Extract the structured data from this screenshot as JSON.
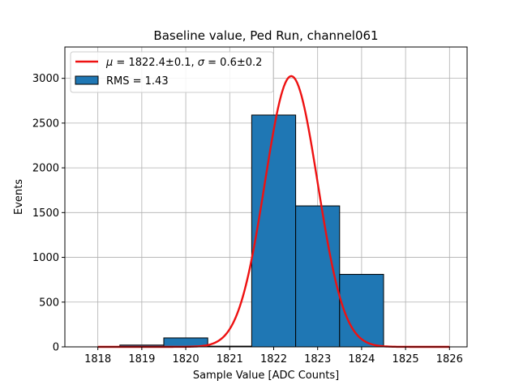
{
  "chart_data": {
    "type": "bar",
    "title": "Baseline value, Ped Run, channel061",
    "xlabel": "Sample Value [ADC Counts]",
    "ylabel": "Events",
    "xlim": [
      1817.25,
      1826.4
    ],
    "ylim": [
      0,
      3350
    ],
    "xticks": [
      1818,
      1819,
      1820,
      1821,
      1822,
      1823,
      1824,
      1825,
      1826
    ],
    "yticks": [
      0,
      500,
      1000,
      1500,
      2000,
      2500,
      3000
    ],
    "grid": true,
    "bin_width": 1,
    "bins": [
      {
        "center": 1818,
        "value": 0
      },
      {
        "center": 1819,
        "value": 20
      },
      {
        "center": 1820,
        "value": 100
      },
      {
        "center": 1821,
        "value": 8
      },
      {
        "center": 1822,
        "value": 2590
      },
      {
        "center": 1823,
        "value": 1575
      },
      {
        "center": 1824,
        "value": 810
      },
      {
        "center": 1825,
        "value": 0
      },
      {
        "center": 1826,
        "value": 0
      }
    ],
    "fit": {
      "type": "gaussian",
      "mu": 1822.4,
      "sigma": 0.6,
      "amplitude": 3025,
      "x_range": [
        1818,
        1826
      ],
      "color": "#ee1111"
    },
    "bar_color": "#1f77b4",
    "bar_edge_color": "#000000",
    "legend": {
      "placement": "top-left",
      "entries": [
        {
          "kind": "line",
          "color": "#ee1111",
          "mu_label": "μ",
          "mu_text": " = 1822.4±0.1, ",
          "sigma_label": "σ",
          "sigma_text": " = 0.6±0.2"
        },
        {
          "kind": "patch",
          "color": "#1f77b4",
          "label": "RMS = 1.43"
        }
      ]
    }
  }
}
